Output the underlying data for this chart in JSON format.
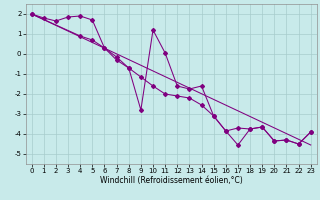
{
  "xlabel": "Windchill (Refroidissement éolien,°C)",
  "line_color": "#800080",
  "bg_color": "#c8eaea",
  "grid_color": "#a8cccc",
  "ylim": [
    -5.5,
    2.5
  ],
  "xlim": [
    -0.5,
    23.5
  ],
  "yticks": [
    -5,
    -4,
    -3,
    -2,
    -1,
    0,
    1,
    2
  ],
  "xticks": [
    0,
    1,
    2,
    3,
    4,
    5,
    6,
    7,
    8,
    9,
    10,
    11,
    12,
    13,
    14,
    15,
    16,
    17,
    18,
    19,
    20,
    21,
    22,
    23
  ],
  "zigzag_x": [
    0,
    1,
    2,
    3,
    4,
    5,
    6,
    7,
    8,
    9,
    10,
    11,
    12,
    13,
    14,
    15,
    16,
    17,
    18,
    19,
    20,
    21,
    22,
    23
  ],
  "zigzag_y": [
    2,
    1.8,
    1.65,
    1.85,
    1.9,
    1.7,
    0.3,
    -0.15,
    -0.7,
    -2.8,
    1.2,
    0.05,
    -1.6,
    -1.75,
    -1.6,
    -3.1,
    -3.85,
    -4.55,
    -3.75,
    -3.65,
    -4.35,
    -4.3,
    -4.5,
    -3.9
  ],
  "trend1_x": [
    0,
    23
  ],
  "trend1_y": [
    2.0,
    -4.55
  ],
  "trend2_x": [
    0,
    4,
    5,
    6,
    7,
    8,
    9,
    10,
    11,
    12,
    13,
    14,
    15,
    16,
    17,
    18,
    19,
    20,
    21,
    22,
    23
  ],
  "trend2_y": [
    2.0,
    0.9,
    0.7,
    0.3,
    -0.3,
    -0.7,
    -1.15,
    -1.6,
    -2.0,
    -2.1,
    -2.2,
    -2.55,
    -3.1,
    -3.85,
    -3.7,
    -3.75,
    -3.65,
    -4.35,
    -4.3,
    -4.5,
    -3.9
  ],
  "marker": "D",
  "markersize": 2.0,
  "linewidth": 0.75,
  "xlabel_fontsize": 5.5,
  "tick_fontsize": 5.0
}
